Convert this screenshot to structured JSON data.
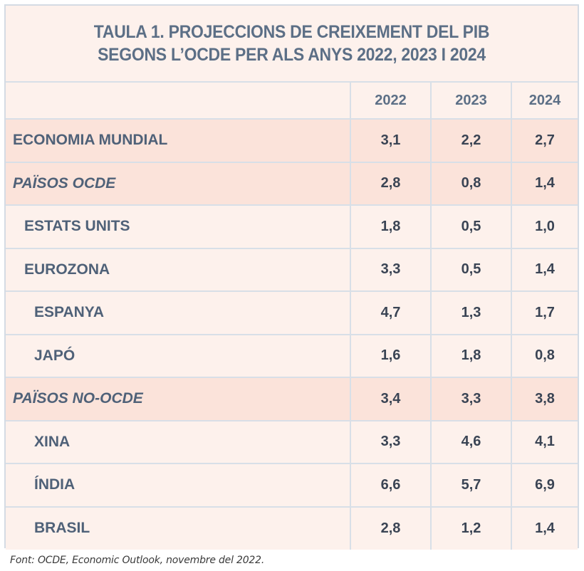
{
  "title": {
    "line1": "TAULA 1. PROJECCIONS DE CREIXEMENT DEL PIB",
    "line2": "SEGONS L’OCDE PER ALS ANYS 2022, 2023 I 2024"
  },
  "columns": [
    "",
    "2022",
    "2023",
    "2024"
  ],
  "rows": [
    {
      "label": "ECONOMIA MUNDIAL",
      "values": [
        "3,1",
        "2,2",
        "2,7"
      ],
      "level": 0,
      "highlight": true,
      "italic": false
    },
    {
      "label": "PAÏSOS OCDE",
      "values": [
        "2,8",
        "0,8",
        "1,4"
      ],
      "level": 0,
      "highlight": true,
      "italic": true
    },
    {
      "label": "ESTATS UNITS",
      "values": [
        "1,8",
        "0,5",
        "1,0"
      ],
      "level": 1,
      "highlight": false,
      "italic": false
    },
    {
      "label": "EUROZONA",
      "values": [
        "3,3",
        "0,5",
        "1,4"
      ],
      "level": 1,
      "highlight": false,
      "italic": false
    },
    {
      "label": "ESPANYA",
      "values": [
        "4,7",
        "1,3",
        "1,7"
      ],
      "level": 2,
      "highlight": false,
      "italic": false
    },
    {
      "label": "JAPÓ",
      "values": [
        "1,6",
        "1,8",
        "0,8"
      ],
      "level": 2,
      "highlight": false,
      "italic": false
    },
    {
      "label": "PAÏSOS NO-OCDE",
      "values": [
        "3,4",
        "3,3",
        "3,8"
      ],
      "level": 0,
      "highlight": true,
      "italic": true
    },
    {
      "label": "XINA",
      "values": [
        "3,3",
        "4,6",
        "4,1"
      ],
      "level": 2,
      "highlight": false,
      "italic": false
    },
    {
      "label": "ÍNDIA",
      "values": [
        "6,6",
        "5,7",
        "6,9"
      ],
      "level": 2,
      "highlight": false,
      "italic": false
    },
    {
      "label": "BRASIL",
      "values": [
        "2,8",
        "1,2",
        "1,4"
      ],
      "level": 2,
      "highlight": false,
      "italic": false
    }
  ],
  "source": "Font: OCDE, Economic Outlook, novembre del 2022.",
  "colors": {
    "title_text": "#5c6f86",
    "background": "#fdf1ec",
    "highlight_row": "#fbe3da",
    "grid_lines": "#d8dfe7"
  }
}
